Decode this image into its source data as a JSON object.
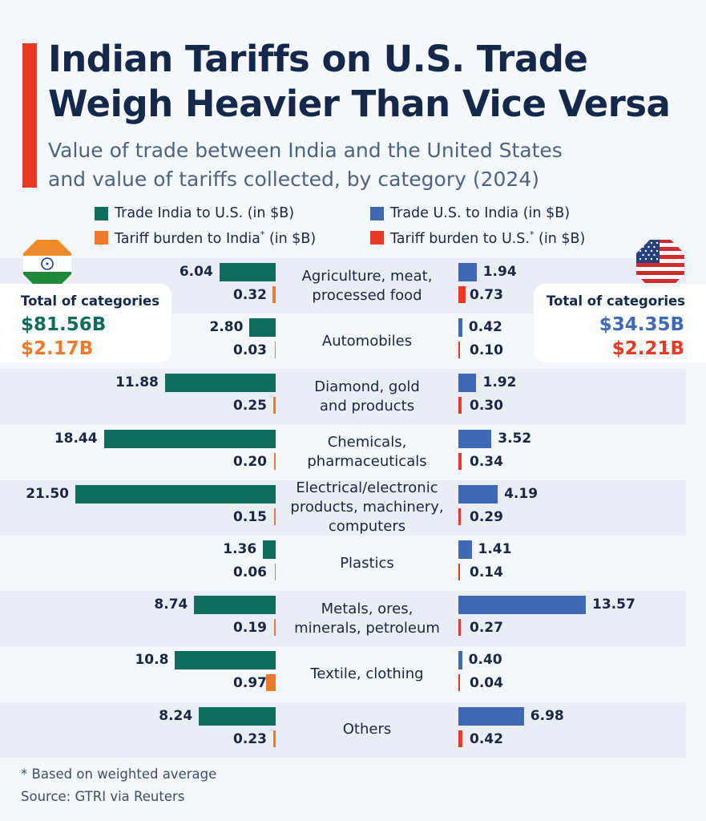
{
  "title_lines": [
    "Indian Tariffs on U.S. Trade",
    "Weigh Heavier Than Vice Versa"
  ],
  "subtitle_lines": [
    "Value of trade between India and the United States",
    "and value of tariffs collected, by category (2024)"
  ],
  "legend": [
    {
      "text": "Trade India to U.S. (in $B)",
      "color": "#0e6e5c"
    },
    {
      "text": "Trade U.S. to India (in $B)",
      "color": "#3f68b5"
    },
    {
      "text": "Tariff burden to India",
      "sup": "*",
      "suffix": " (in $B)",
      "color": "#f07a2a"
    },
    {
      "text": "Tariff burden to U.S.",
      "sup": "*",
      "suffix": " (in $B)",
      "color": "#e63a22"
    }
  ],
  "totals": {
    "india": {
      "label": "Total of  categories",
      "trade": "$81.56B",
      "tariff": "$2.17B"
    },
    "us": {
      "label": "Total of  categories",
      "trade": "$34.35B",
      "tariff": "$2.21B"
    }
  },
  "colors": {
    "india_trade": "#0e6e5c",
    "india_tariff": "#f07a2a",
    "us_trade": "#3f68b5",
    "us_tariff": "#e63a22",
    "title": "#14294a",
    "accent": "#e63a22"
  },
  "chart_data": {
    "type": "bar",
    "categories": [
      [
        "Agriculture, meat,",
        "processed food"
      ],
      [
        "Automobiles"
      ],
      [
        "Diamond, gold",
        "and products"
      ],
      [
        "Chemicals,",
        "pharmaceuticals"
      ],
      [
        "Electrical/electronic",
        "products, machinery,",
        "computers"
      ],
      [
        "Plastics"
      ],
      [
        "Metals, ores,",
        "minerals, petroleum"
      ],
      [
        "Textile, clothing"
      ],
      [
        "Others"
      ]
    ],
    "series": [
      {
        "name": "Trade India to U.S. (in $B)",
        "values": [
          6.04,
          2.8,
          11.88,
          18.44,
          21.5,
          1.36,
          8.74,
          10.8,
          8.24
        ],
        "labels": [
          "6.04",
          "2.80",
          "11.88",
          "18.44",
          "21.50",
          "1.36",
          "8.74",
          "10.8",
          "8.24"
        ]
      },
      {
        "name": "Tariff burden to India* (in $B)",
        "values": [
          0.32,
          0.03,
          0.25,
          0.2,
          0.15,
          0.06,
          0.19,
          0.97,
          0.23
        ],
        "labels": [
          "0.32",
          "0.03",
          "0.25",
          "0.20",
          "0.15",
          "0.06",
          "0.19",
          "0.97",
          "0.23"
        ]
      },
      {
        "name": "Trade U.S. to India (in $B)",
        "values": [
          1.94,
          0.42,
          1.92,
          3.52,
          4.19,
          1.41,
          13.57,
          0.4,
          6.98
        ],
        "labels": [
          "1.94",
          "0.42",
          "1.92",
          "3.52",
          "4.19",
          "1.41",
          "13.57",
          "0.40",
          "6.98"
        ]
      },
      {
        "name": "Tariff burden to U.S.* (in $B)",
        "values": [
          0.73,
          0.1,
          0.3,
          0.34,
          0.29,
          0.14,
          0.27,
          0.04,
          0.42
        ],
        "labels": [
          "0.73",
          "0.10",
          "0.30",
          "0.34",
          "0.29",
          "0.14",
          "0.27",
          "0.04",
          "0.42"
        ]
      }
    ]
  },
  "footnote": "* Based on weighted average",
  "source": "Source: GTRI via Reuters"
}
